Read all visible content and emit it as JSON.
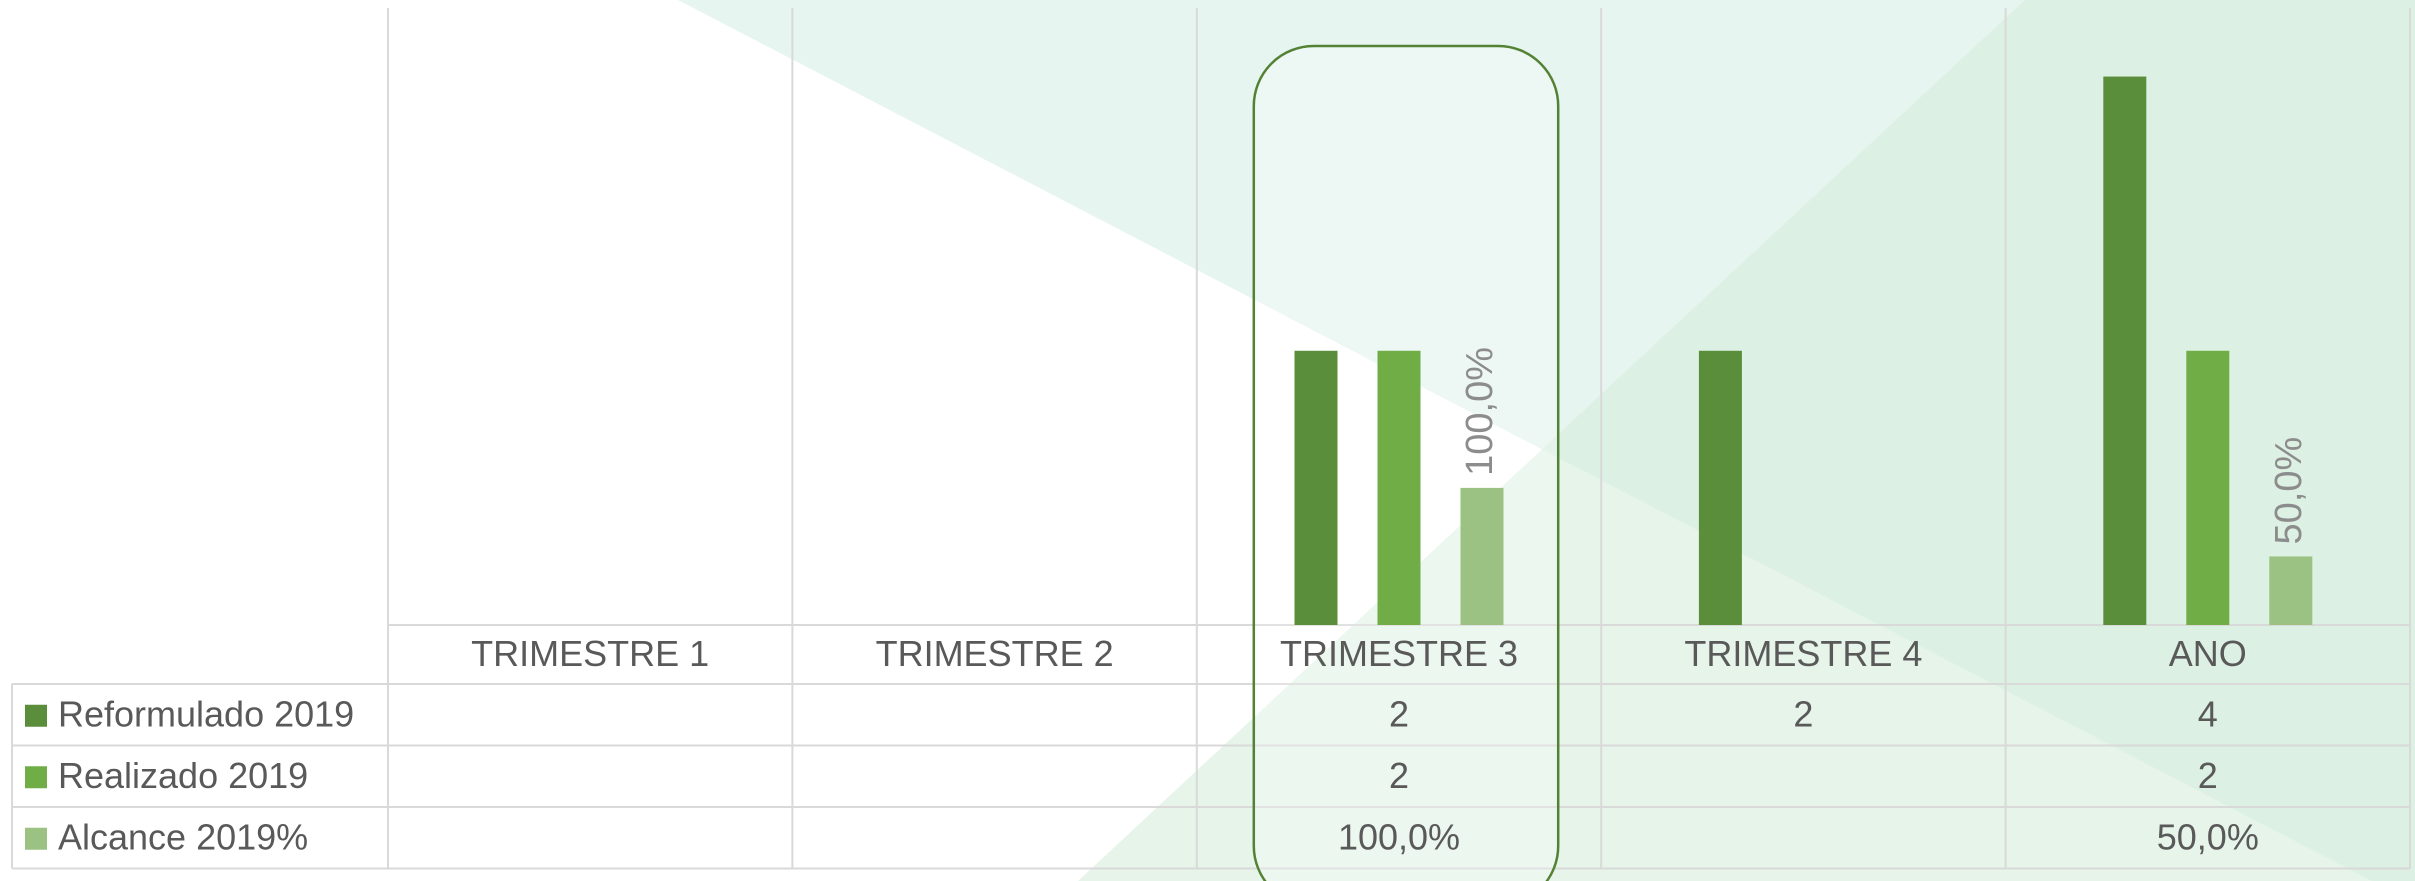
{
  "chart_data": {
    "type": "bar",
    "categories": [
      "TRIMESTRE 1",
      "TRIMESTRE 2",
      "TRIMESTRE 3",
      "TRIMESTRE 4",
      "ANO"
    ],
    "series": [
      {
        "name": "Reformulado 2019",
        "color": "#5a8e3a",
        "values": [
          null,
          null,
          2,
          2,
          4
        ]
      },
      {
        "name": "Realizado 2019",
        "color": "#70ad47",
        "values": [
          null,
          null,
          2,
          null,
          2
        ]
      },
      {
        "name": "Alcance 2019%",
        "color": "#9bc283",
        "axis": "y2",
        "values": [
          null,
          null,
          100,
          null,
          50
        ],
        "value_labels": [
          null,
          null,
          "100,0%",
          null,
          "50,0%"
        ]
      }
    ],
    "ylim": [
      0,
      4.5
    ],
    "y2lim": [
      0,
      450
    ],
    "data_table": true,
    "highlight": 2
  }
}
